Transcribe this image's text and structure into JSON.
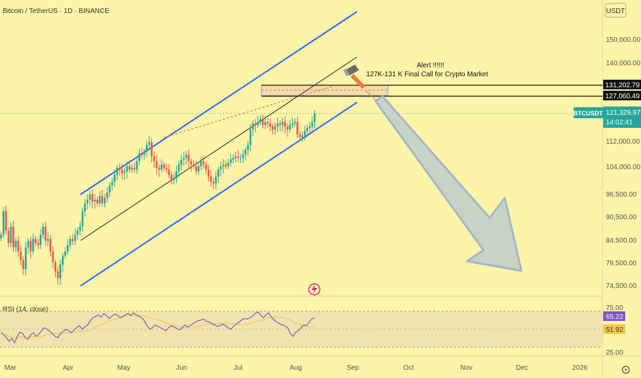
{
  "header": {
    "symbol_title": "Bitcoin / TetherUS · 1D · BINANCE"
  },
  "price_scale": {
    "currency_button": "USDT",
    "ticks": [
      "150,000.00",
      "140,000.00",
      "112,000.00",
      "104,000.00",
      "96,500.00",
      "90,500.00",
      "84,500.00",
      "79,500.00",
      "74,500.00"
    ],
    "zone_upper_label": "131,202.79",
    "zone_lower_label": "127,060.49",
    "price_badge": {
      "symbol": "BTCUSDT",
      "price": "121,329.97",
      "countdown": "14:02:41"
    }
  },
  "annotation": {
    "line1": "Alert !!!!!!",
    "line2": "127K-131 K Final Call for Crypto Market"
  },
  "rsi": {
    "label": "RSI (14, close)",
    "ticks": [
      "75.00",
      "25.00"
    ],
    "value_badge": "65.22",
    "ma_badge": "51.92"
  },
  "time_axis": {
    "labels": [
      "Mar",
      "Apr",
      "May",
      "Jun",
      "Jul",
      "Aug",
      "Sep",
      "Oct",
      "Nov",
      "Dec",
      "2026"
    ]
  },
  "colors": {
    "background": "#fcf4a7",
    "up_candle": "#26a69a",
    "down_candle": "#ef5350",
    "channel": "#2962ff",
    "rsi_line": "#7e57c2",
    "rsi_ma": "#f2c94c",
    "badge": "#26a69a",
    "arrow_fill": "#c5d2c8"
  },
  "chart_data": {
    "type": "candlestick",
    "title": "Bitcoin / TetherUS · 1D · BINANCE",
    "ylabel": "USDT",
    "x": [
      "Mar",
      "Apr",
      "May",
      "Jun",
      "Jul",
      "Aug"
    ],
    "closes": [
      86000,
      92000,
      87000,
      84000,
      88000,
      83000,
      84500,
      82000,
      80000,
      78000,
      83000,
      84500,
      82000,
      85000,
      84000,
      83500,
      86000,
      88000,
      84500,
      85000,
      82000,
      79500,
      77500,
      76000,
      79000,
      81000,
      82000,
      83500,
      85000,
      84500,
      86000,
      87000,
      88000,
      92000,
      94000,
      95000,
      96500,
      94500,
      95000,
      94000,
      96000,
      94000,
      95500,
      97000,
      99000,
      100000,
      102000,
      104000,
      103500,
      102500,
      103000,
      104500,
      103500,
      104000,
      103500,
      106000,
      108500,
      108000,
      109000,
      111000,
      112000,
      107500,
      106000,
      104000,
      103500,
      105000,
      104000,
      103500,
      102000,
      100500,
      101000,
      103000,
      105000,
      106500,
      107000,
      108000,
      106000,
      105000,
      104500,
      103000,
      104500,
      106000,
      105000,
      103500,
      101500,
      100000,
      99500,
      101500,
      103500,
      104500,
      105000,
      104500,
      105500,
      106500,
      107000,
      107500,
      107000,
      107000,
      108000,
      109500,
      111000,
      116000,
      118000,
      117500,
      118500,
      119500,
      117500,
      118500,
      118000,
      117000,
      116000,
      117000,
      118000,
      117500,
      118500,
      117000,
      116000,
      117500,
      118000,
      118500,
      114500,
      113500,
      114000,
      115500,
      116500,
      117000,
      118500,
      121330
    ],
    "resistance_zone": [
      127060.49,
      131202.79
    ],
    "current_price": 121329.97,
    "rsi": {
      "name": "RSI (14, close)",
      "levels": [
        75,
        25
      ],
      "current": 65.22,
      "ma_current": 51.92,
      "values": [
        45,
        42,
        38,
        33,
        37,
        31,
        40,
        46,
        44,
        38,
        36,
        42,
        45,
        40,
        43,
        48,
        52,
        50,
        47,
        44,
        40,
        38,
        44,
        47,
        50,
        48,
        45,
        49,
        52,
        55,
        50,
        53,
        56,
        62,
        66,
        68,
        70,
        67,
        72,
        69,
        65,
        68,
        71,
        70,
        66,
        68,
        70,
        72,
        69,
        73,
        70,
        68,
        66,
        62,
        55,
        50,
        52,
        56,
        54,
        52,
        50,
        48,
        52,
        55,
        53,
        51,
        49,
        52,
        56,
        53,
        55,
        58,
        60,
        62,
        63,
        64,
        61,
        60,
        58,
        56,
        54,
        55,
        57,
        55,
        52,
        50,
        54,
        57,
        60,
        63,
        65,
        64,
        66,
        68,
        72,
        74,
        70,
        66,
        70,
        73,
        67,
        63,
        60,
        58,
        56,
        55,
        52,
        44,
        40,
        46,
        48,
        52,
        56,
        55,
        60,
        65,
        65.22
      ]
    }
  }
}
